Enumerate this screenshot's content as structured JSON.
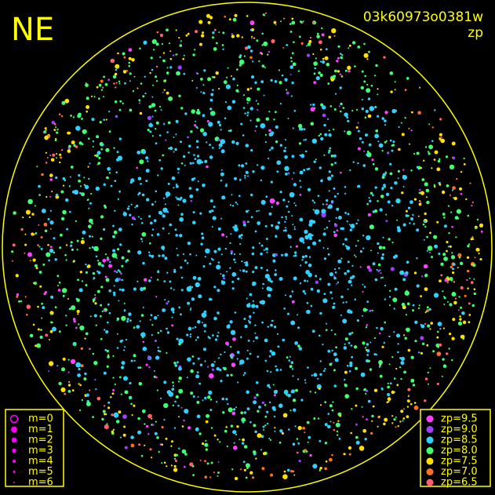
{
  "title": "NE",
  "image_id": "03k60973o0381w",
  "color_key": "zp",
  "magnitude_legend": {
    "items": [
      "m=0",
      "m=1",
      "m=2",
      "m=3",
      "m=4",
      "m=5",
      "m=6"
    ],
    "color": "#ff00ff"
  },
  "zp_legend": {
    "items": [
      {
        "label": "zp=9.5",
        "color": "#ff40ff"
      },
      {
        "label": "zp=9.0",
        "color": "#a040ff"
      },
      {
        "label": "zp=8.5",
        "color": "#30d0ff"
      },
      {
        "label": "zp=8.0",
        "color": "#40ff70"
      },
      {
        "label": "zp=7.5",
        "color": "#ffe000"
      },
      {
        "label": "zp=7.0",
        "color": "#ff7020"
      },
      {
        "label": "zp=6.5",
        "color": "#ff6070"
      }
    ]
  }
}
